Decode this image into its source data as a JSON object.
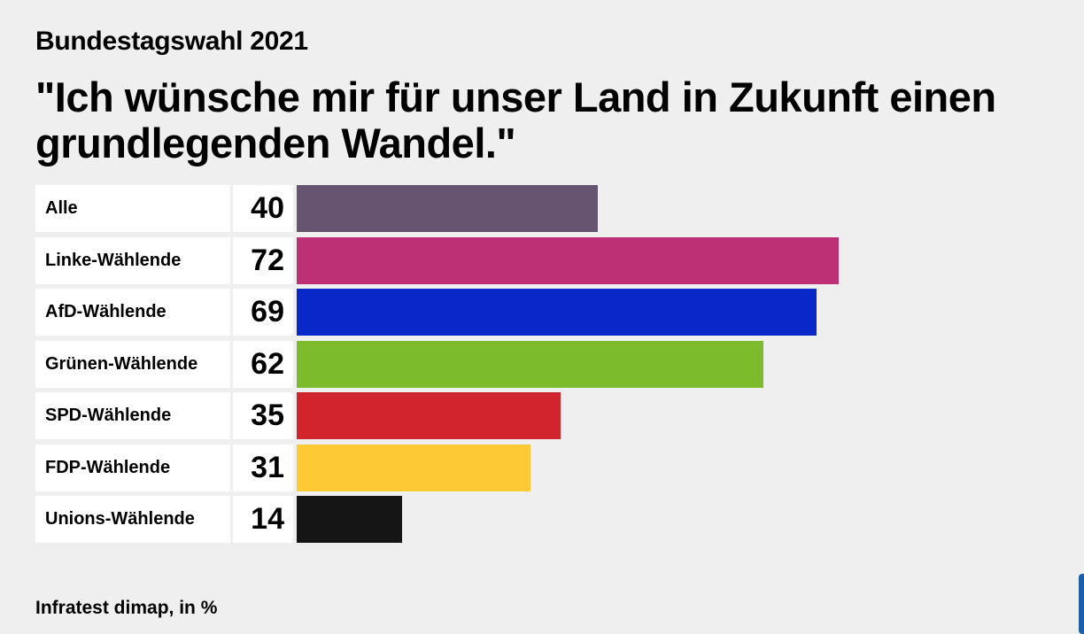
{
  "header": {
    "subtitle": "Bundestagswahl 2021",
    "title_line1": "\"Ich wünsche mir für unser Land in Zukunft einen",
    "title_line2": "grundlegenden Wandel.\""
  },
  "source": "Infratest dimap, in %",
  "chart_data": {
    "type": "bar",
    "orientation": "horizontal",
    "title": "\"Ich wünsche mir für unser Land in Zukunft einen grundlegenden Wandel.\"",
    "subtitle": "Bundestagswahl 2021",
    "unit": "%",
    "xlim": [
      0,
      100
    ],
    "grid": false,
    "categories": [
      "Alle",
      "Linke-Wählende",
      "AfD-Wählende",
      "Grünen-Wählende",
      "SPD-Wählende",
      "FDP-Wählende",
      "Unions-Wählende"
    ],
    "values": [
      40,
      72,
      69,
      62,
      35,
      31,
      14
    ],
    "colors": [
      "#675471",
      "#be3075",
      "#0a28c8",
      "#7cbc2c",
      "#d1242c",
      "#fdc934",
      "#151515"
    ]
  }
}
